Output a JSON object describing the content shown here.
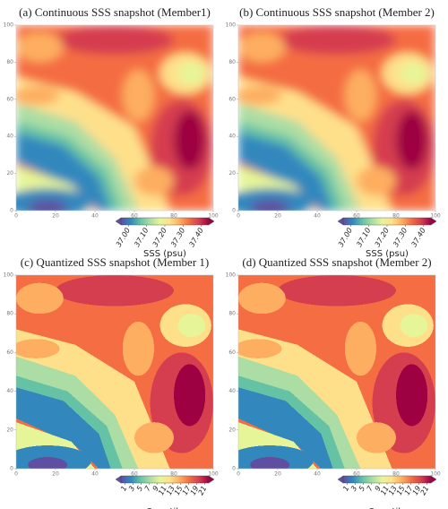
{
  "chart_data": [
    {
      "type": "heatmap",
      "title": "(a) Continuous SSS snapshot (Member1)",
      "xlim": [
        0,
        100
      ],
      "ylim": [
        0,
        100
      ],
      "xticks": [
        0,
        20,
        40,
        60,
        80,
        100
      ],
      "yticks": [
        0,
        20,
        40,
        60,
        80,
        100
      ],
      "interpolation": "smooth",
      "colormap": [
        "#5e4fa2",
        "#3288bd",
        "#66c2a5",
        "#abdda4",
        "#e6f598",
        "#fee08b",
        "#fdae61",
        "#f46d43",
        "#d53e4f",
        "#9e0142"
      ],
      "colorbar": {
        "label": "SSS (psu)",
        "lim": [
          36.96,
          37.44
        ],
        "ticks": [
          {
            "value": 37,
            "label": "37.00"
          },
          {
            "value": 37.1,
            "label": "37.10"
          },
          {
            "value": 37.2,
            "label": "37.20"
          },
          {
            "value": 37.3,
            "label": "37.30"
          },
          {
            "value": 37.4,
            "label": "37.40"
          }
        ]
      }
    },
    {
      "type": "heatmap",
      "title": "(b) Continuous SSS snapshot (Member 2)",
      "xlim": [
        0,
        100
      ],
      "ylim": [
        0,
        100
      ],
      "xticks": [
        0,
        20,
        40,
        60,
        80,
        100
      ],
      "yticks": [
        0,
        20,
        40,
        60,
        80,
        100
      ],
      "interpolation": "smooth",
      "colormap": [
        "#5e4fa2",
        "#3288bd",
        "#66c2a5",
        "#abdda4",
        "#e6f598",
        "#fee08b",
        "#fdae61",
        "#f46d43",
        "#d53e4f",
        "#9e0142"
      ],
      "colorbar": {
        "label": "SSS (psu)",
        "lim": [
          36.96,
          37.44
        ],
        "ticks": [
          {
            "value": 37,
            "label": "37.00"
          },
          {
            "value": 37.1,
            "label": "37.10"
          },
          {
            "value": 37.2,
            "label": "37.20"
          },
          {
            "value": 37.3,
            "label": "37.30"
          },
          {
            "value": 37.4,
            "label": "37.40"
          }
        ]
      }
    },
    {
      "type": "heatmap",
      "title": "(c) Quantized SSS snapshot (Member 1)",
      "xlim": [
        0,
        100
      ],
      "ylim": [
        0,
        100
      ],
      "xticks": [
        0,
        20,
        40,
        60,
        80,
        100
      ],
      "yticks": [
        0,
        20,
        40,
        60,
        80,
        100
      ],
      "interpolation": "nearest",
      "colormap": [
        "#5e4fa2",
        "#3288bd",
        "#66c2a5",
        "#abdda4",
        "#e6f598",
        "#fee08b",
        "#fdae61",
        "#f46d43",
        "#d53e4f",
        "#9e0142"
      ],
      "colorbar": {
        "label": "Quantile",
        "lim": [
          0,
          22
        ],
        "ticks": [
          1,
          3,
          5,
          7,
          9,
          11,
          13,
          15,
          17,
          19,
          21
        ]
      }
    },
    {
      "type": "heatmap",
      "title": "(d) Quantized SSS snapshot (Member 2)",
      "xlim": [
        0,
        100
      ],
      "ylim": [
        0,
        100
      ],
      "xticks": [
        0,
        20,
        40,
        60,
        80,
        100
      ],
      "yticks": [
        0,
        20,
        40,
        60,
        80,
        100
      ],
      "interpolation": "nearest",
      "colormap": [
        "#5e4fa2",
        "#3288bd",
        "#66c2a5",
        "#abdda4",
        "#e6f598",
        "#fee08b",
        "#fdae61",
        "#f46d43",
        "#d53e4f",
        "#9e0142"
      ],
      "colorbar": {
        "label": "Quantile",
        "lim": [
          0,
          22
        ],
        "ticks": [
          1,
          3,
          5,
          7,
          9,
          11,
          13,
          15,
          17,
          19,
          21
        ]
      }
    }
  ]
}
